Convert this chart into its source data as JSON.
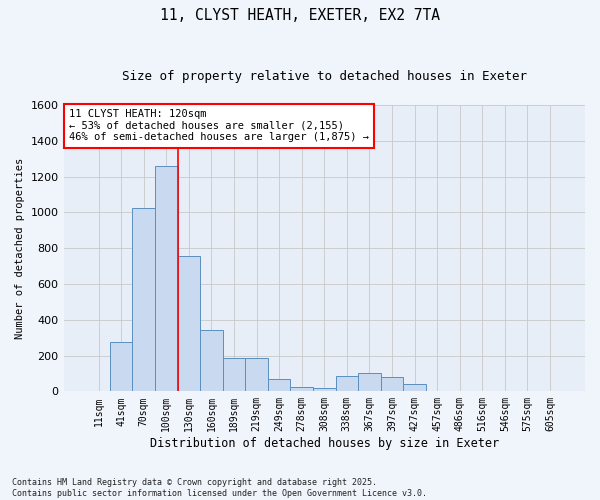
{
  "title_line1": "11, CLYST HEATH, EXETER, EX2 7TA",
  "title_line2": "Size of property relative to detached houses in Exeter",
  "xlabel": "Distribution of detached houses by size in Exeter",
  "ylabel": "Number of detached properties",
  "categories": [
    "11sqm",
    "41sqm",
    "70sqm",
    "100sqm",
    "130sqm",
    "160sqm",
    "189sqm",
    "219sqm",
    "249sqm",
    "278sqm",
    "308sqm",
    "338sqm",
    "367sqm",
    "397sqm",
    "427sqm",
    "457sqm",
    "486sqm",
    "516sqm",
    "546sqm",
    "575sqm",
    "605sqm"
  ],
  "values": [
    0,
    275,
    1025,
    1260,
    755,
    340,
    185,
    185,
    70,
    25,
    20,
    85,
    100,
    80,
    40,
    0,
    0,
    0,
    0,
    0,
    0
  ],
  "bar_color": "#c8d9f0",
  "bar_edge_color": "#5a8fc0",
  "grid_color": "#c8c8c8",
  "bg_color": "#e8eef8",
  "vline_color": "red",
  "annotation_text": "11 CLYST HEATH: 120sqm\n← 53% of detached houses are smaller (2,155)\n46% of semi-detached houses are larger (1,875) →",
  "annotation_box_color": "red",
  "ylim": [
    0,
    1600
  ],
  "yticks": [
    0,
    200,
    400,
    600,
    800,
    1000,
    1200,
    1400,
    1600
  ],
  "footnote": "Contains HM Land Registry data © Crown copyright and database right 2025.\nContains public sector information licensed under the Open Government Licence v3.0.",
  "fig_bg": "#f0f4fb"
}
